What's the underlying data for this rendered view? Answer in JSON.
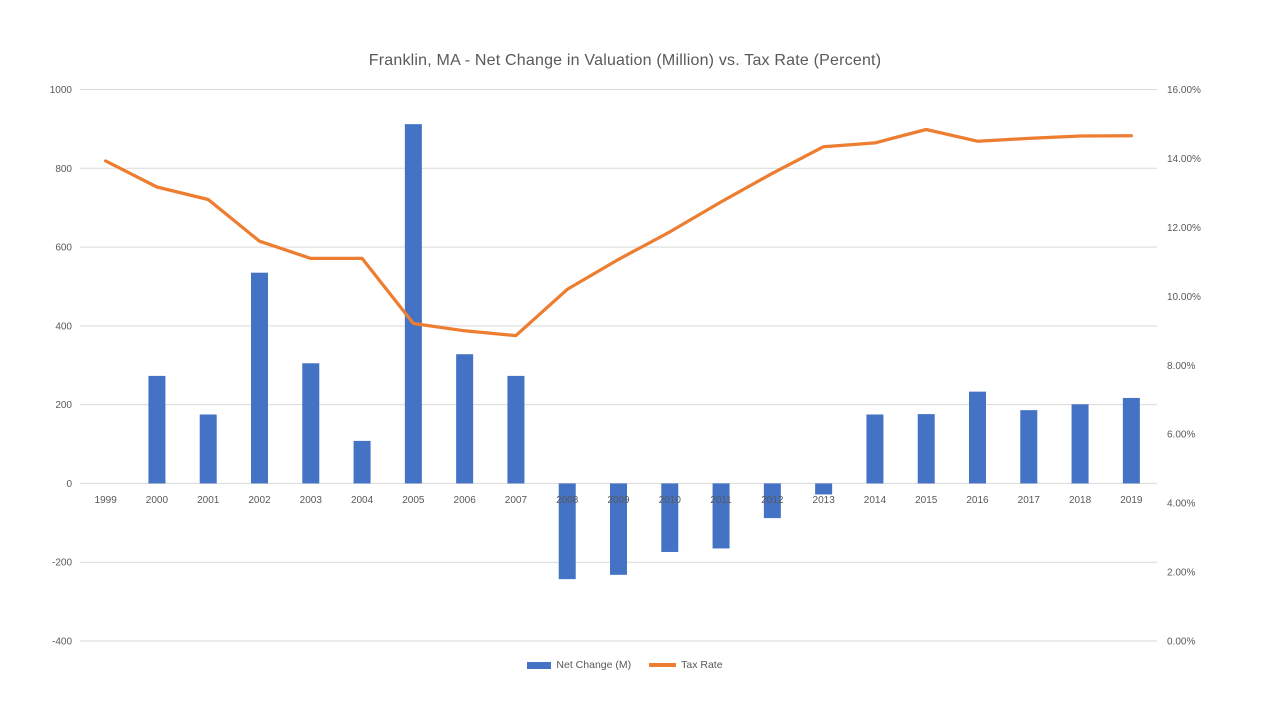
{
  "chart_data": {
    "type": "combo-bar-line",
    "title": "Franklin, MA - Net Change in Valuation (Million) vs. Tax Rate (Percent)",
    "categories": [
      "1999",
      "2000",
      "2001",
      "2002",
      "2003",
      "2004",
      "2005",
      "2006",
      "2007",
      "2008",
      "2009",
      "2010",
      "2011",
      "2012",
      "2013",
      "2014",
      "2015",
      "2016",
      "2017",
      "2018",
      "2019"
    ],
    "series": [
      {
        "name": "Net Change (M)",
        "type": "bar",
        "axis": "left",
        "color": "#4472C4",
        "values": [
          0,
          273,
          175,
          535,
          305,
          108,
          912,
          328,
          273,
          -243,
          -232,
          -174,
          -165,
          -88,
          -28,
          175,
          176,
          233,
          186,
          201,
          217
        ]
      },
      {
        "name": "Tax Rate",
        "type": "line",
        "axis": "right",
        "color": "#ED7D31",
        "values": [
          13.93,
          13.17,
          12.81,
          11.6,
          11.1,
          11.1,
          9.21,
          9.0,
          8.86,
          10.2,
          11.07,
          11.87,
          12.74,
          13.57,
          14.34,
          14.45,
          14.84,
          14.5,
          14.58,
          14.65,
          14.66
        ]
      }
    ],
    "left_axis": {
      "min": -400,
      "max": 1000,
      "step": 200,
      "labels": [
        "1000",
        "800",
        "600",
        "400",
        "200",
        "0",
        "-200",
        "-400"
      ]
    },
    "right_axis": {
      "min": 0,
      "max": 16,
      "step": 2,
      "labels": [
        "16.00%",
        "14.00%",
        "12.00%",
        "10.00%",
        "8.00%",
        "6.00%",
        "4.00%",
        "2.00%",
        "0.00%"
      ]
    },
    "grid": true,
    "legend_position": "bottom",
    "colors": {
      "background": "#FFFFFF",
      "gridline": "#D9D9D9",
      "axis_text": "#595959",
      "title_text": "#595959"
    }
  }
}
